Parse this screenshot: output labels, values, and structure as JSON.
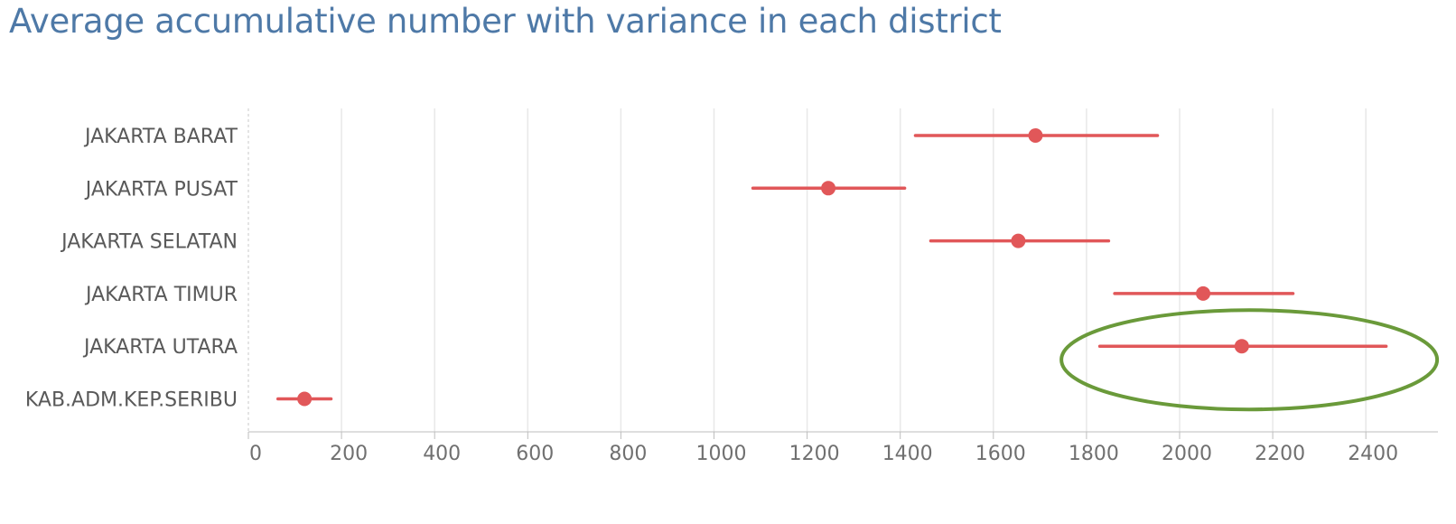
{
  "chart_data": {
    "type": "scatter",
    "subtype": "point-with-error-bars",
    "title": "Average accumulative number with variance in each district",
    "xlabel": "",
    "ylabel": "",
    "xlim": [
      -20,
      2430
    ],
    "xticks": [
      0,
      200,
      400,
      600,
      800,
      1000,
      1200,
      1400,
      1600,
      1800,
      2000,
      2200,
      2400
    ],
    "grid": true,
    "legend": "none",
    "categories": [
      "JAKARTA BARAT",
      "JAKARTA PUSAT",
      "JAKARTA SELATAN",
      "JAKARTA TIMUR",
      "JAKARTA UTARA",
      "KAB.ADM.KEP.SERIBU"
    ],
    "series": [
      {
        "values": [
          1675,
          1230,
          1638,
          2035,
          2118,
          105
        ],
        "lower": [
          1417,
          1068,
          1450,
          1845,
          1813,
          48
        ],
        "upper": [
          1937,
          1394,
          1832,
          2228,
          2428,
          162
        ]
      }
    ],
    "colors": {
      "marker": "#e15759",
      "highlight_ellipse": "#6a9a3a",
      "gridline": "#e8e8e8",
      "axis": "#bdbdbd"
    },
    "annotations": [
      {
        "type": "ellipse",
        "target_category": "JAKARTA UTARA",
        "color": "#6a9a3a"
      }
    ]
  }
}
